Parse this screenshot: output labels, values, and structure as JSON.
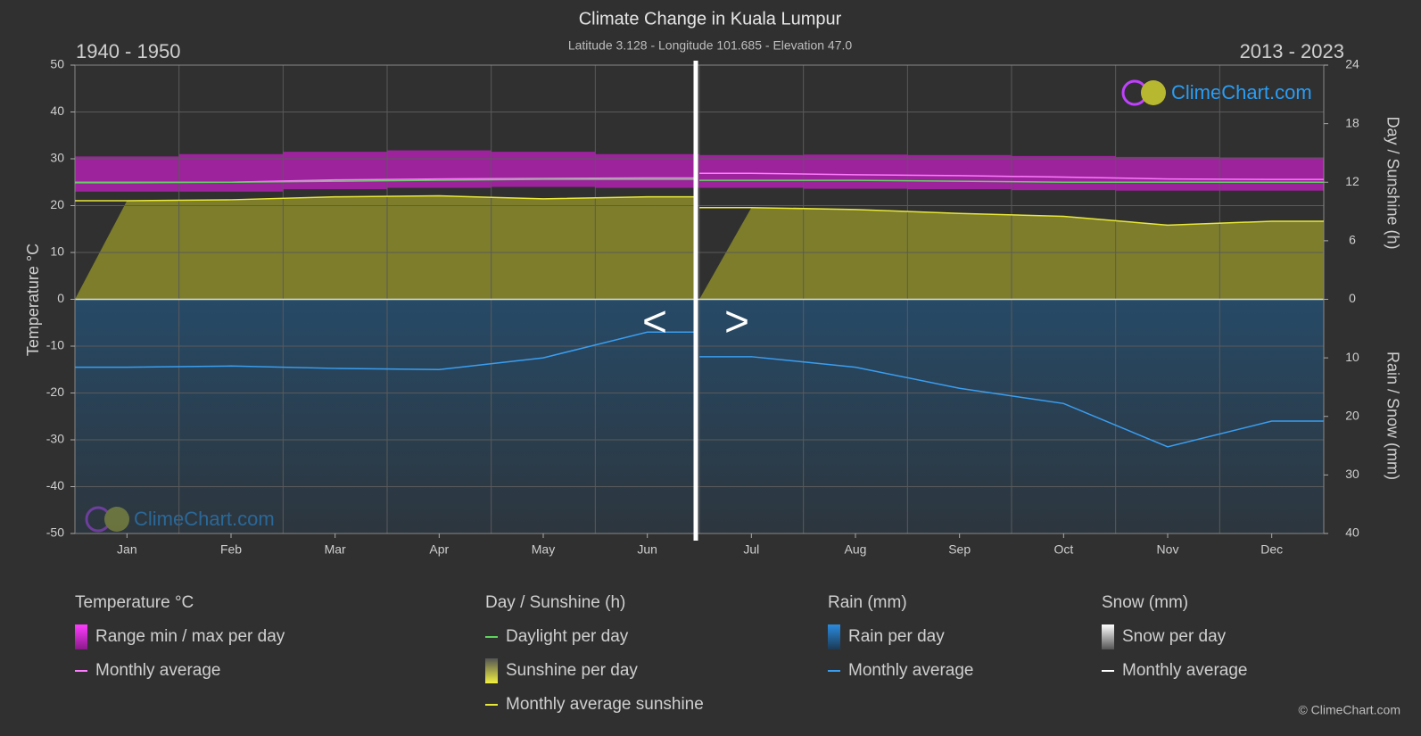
{
  "chart_data": {
    "type": "climate",
    "title": "Climate Change in Kuala Lumpur",
    "subtitle": "Latitude 3.128 - Longitude 101.685 - Elevation 47.0",
    "period_left": "1940 - 1950",
    "period_right": "2013 - 2023",
    "ylabel": "Temperature °C",
    "y2label": "Day / Sunshine (h)",
    "y3label": "Rain / Snow (mm)",
    "categories": [
      "Jan",
      "Feb",
      "Mar",
      "Apr",
      "May",
      "Jun",
      "Jul",
      "Aug",
      "Sep",
      "Oct",
      "Nov",
      "Dec"
    ],
    "ylim": [
      -50,
      50
    ],
    "yticks": [
      -50,
      -40,
      -30,
      -20,
      -10,
      0,
      10,
      20,
      30,
      40,
      50
    ],
    "y2lim": [
      0,
      24
    ],
    "y2ticks": [
      0,
      6,
      12,
      18,
      24
    ],
    "y3lim": [
      0,
      40
    ],
    "y3ticks": [
      10,
      20,
      30,
      40
    ],
    "grid": true,
    "range": {
      "color": "#c21fc2",
      "min": [
        23,
        23,
        23.5,
        23.8,
        24,
        23.8,
        23.8,
        23.6,
        23.5,
        23.3,
        23.2,
        23.2
      ],
      "max": [
        30.5,
        31,
        31.5,
        31.8,
        31.5,
        31,
        30.8,
        30.9,
        30.8,
        30.6,
        30.4,
        30.3
      ]
    },
    "series": [
      {
        "axis": "y",
        "color": "#ff7bff",
        "values": [
          24.9,
          25.0,
          25.5,
          25.7,
          25.8,
          25.9,
          26.9,
          26.6,
          26.4,
          26.1,
          25.7,
          25.6
        ]
      },
      {
        "axis": "y2",
        "color": "#5fd35f",
        "values": [
          12,
          12,
          12.1,
          12.2,
          12.3,
          12.3,
          12.2,
          12.2,
          12.1,
          12,
          12,
          12
        ]
      },
      {
        "axis": "y2",
        "color": "#e8e83a",
        "fill": "#8b8b2c",
        "values": [
          10.1,
          10.2,
          10.5,
          10.6,
          10.3,
          10.5,
          9.4,
          9.2,
          8.8,
          8.5,
          7.6,
          8.0
        ]
      },
      {
        "axis": "y3",
        "color": "#3a9ef0",
        "values": [
          11.6,
          11.4,
          11.8,
          12.0,
          10.0,
          5.6,
          9.8,
          11.6,
          15.2,
          17.8,
          25.2,
          20.8
        ]
      }
    ],
    "nav": [
      "<",
      ">"
    ],
    "watermark": "ClimeChart.com",
    "copyright": "© ClimeChart.com",
    "legend": [
      {
        "title": "Temperature °C",
        "items": [
          {
            "label": "Range min / max per day",
            "color": "#e020e0",
            "style": "box"
          },
          {
            "label": "Monthly average",
            "color": "#ff7bff",
            "style": "line"
          }
        ]
      },
      {
        "title": "Day / Sunshine (h)",
        "items": [
          {
            "label": "Daylight per day",
            "color": "#5fd35f",
            "style": "line"
          },
          {
            "label": "Sunshine per day",
            "color": "#d8d83a",
            "style": "box"
          },
          {
            "label": "Monthly average sunshine",
            "color": "#e8e83a",
            "style": "line"
          }
        ]
      },
      {
        "title": "Rain (mm)",
        "items": [
          {
            "label": "Rain per day",
            "color": "#2a86d8",
            "style": "box"
          },
          {
            "label": "Monthly average",
            "color": "#3a9ef0",
            "style": "line"
          }
        ]
      },
      {
        "title": "Snow (mm)",
        "items": [
          {
            "label": "Snow per day",
            "color": "#dddddd",
            "style": "box"
          },
          {
            "label": "Monthly average",
            "color": "#ffffff",
            "style": "line"
          }
        ]
      }
    ]
  }
}
